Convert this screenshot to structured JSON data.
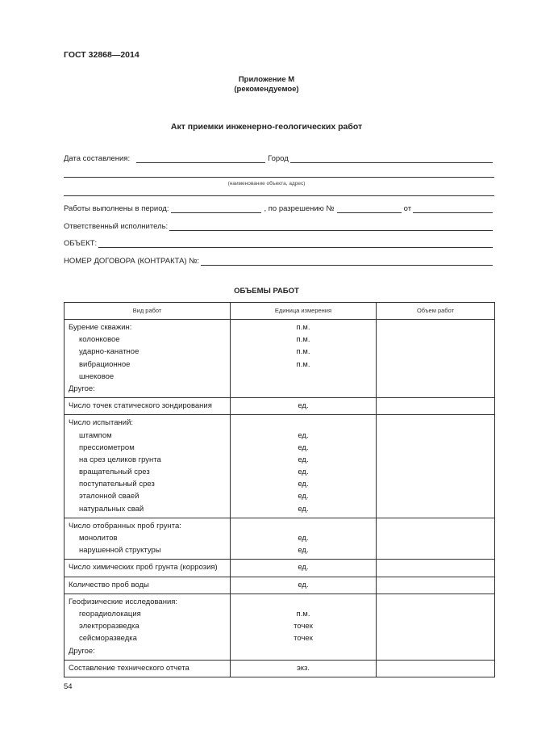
{
  "header": "ГОСТ 32868—2014",
  "appendix": {
    "title": "Приложение М",
    "subtitle": "(рекомендуемое)"
  },
  "doc_title": "Акт приемки инженерно-геологических работ",
  "form": {
    "date_label": "Дата составления:",
    "city_label": "Город",
    "object_caption": "(наименование объекта, адрес)",
    "period_label": "Работы выполнены в период:",
    "permit_label": ", по разрешению №",
    "from_label": "от",
    "executor_label": "Ответственный исполнитель:",
    "object_label": "ОБЪЕКТ:",
    "contract_label": "НОМЕР ДОГОВОРА (КОНТРАКТА) №:"
  },
  "table_title": "ОБЪЕМЫ РАБОТ",
  "table": {
    "headers": [
      "Вид работ",
      "Единица измерения",
      "Объем работ"
    ],
    "groups": [
      [
        {
          "t": "Бурение скважин:",
          "u": "п.м."
        },
        {
          "t": "колонковое",
          "u": "п.м.",
          "i": 1
        },
        {
          "t": "ударно-канатное",
          "u": "п.м.",
          "i": 1
        },
        {
          "t": "вибрационное",
          "u": "п.м.",
          "i": 1
        },
        {
          "t": "шнековое",
          "u": "",
          "i": 1
        },
        {
          "t": "Другое:",
          "u": ""
        }
      ],
      [
        {
          "t": "Число точек статического зондирования",
          "u": "ед."
        }
      ],
      [
        {
          "t": "Число испытаний:",
          "u": ""
        },
        {
          "t": "штампом",
          "u": "ед.",
          "i": 1
        },
        {
          "t": "прессиометром",
          "u": "ед.",
          "i": 1
        },
        {
          "t": "на срез целиков грунта",
          "u": "ед.",
          "i": 1
        },
        {
          "t": "вращательный срез",
          "u": "ед.",
          "i": 1
        },
        {
          "t": "поступательный срез",
          "u": "ед.",
          "i": 1
        },
        {
          "t": "эталонной сваей",
          "u": "ед.",
          "i": 1
        },
        {
          "t": "натуральных свай",
          "u": "ед.",
          "i": 1
        }
      ],
      [
        {
          "t": "Число отобранных проб грунта:",
          "u": ""
        },
        {
          "t": "монолитов",
          "u": "ед.",
          "i": 1
        },
        {
          "t": "нарушенной структуры",
          "u": "ед.",
          "i": 1
        }
      ],
      [
        {
          "t": "Число химических проб грунта (коррозия)",
          "u": "ед."
        }
      ],
      [
        {
          "t": "Количество проб воды",
          "u": "ед."
        }
      ],
      [
        {
          "t": "Геофизические исследования:",
          "u": ""
        },
        {
          "t": "георадиолокация",
          "u": "п.м.",
          "i": 1
        },
        {
          "t": "электроразведка",
          "u": "точек",
          "i": 1
        },
        {
          "t": "сейсморазведка",
          "u": "точек",
          "i": 1
        },
        {
          "t": "Другое:",
          "u": ""
        }
      ],
      [
        {
          "t": "Составление технического отчета",
          "u": "экз."
        }
      ]
    ]
  },
  "page_number": "54"
}
